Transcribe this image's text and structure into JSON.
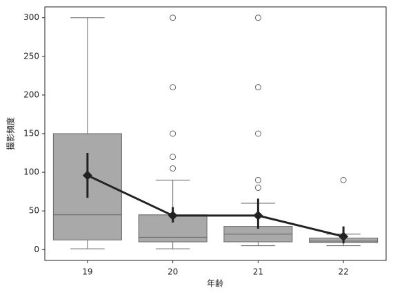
{
  "chart_data": {
    "type": "boxplot",
    "xlabel": "年齢",
    "ylabel": "撮影頻度",
    "categories": [
      "19",
      "20",
      "21",
      "22"
    ],
    "boxes": [
      {
        "whislo": 1,
        "q1": 12.5,
        "med": 45,
        "q3": 150,
        "whishi": 300,
        "fliers": []
      },
      {
        "whislo": 1,
        "q1": 10,
        "med": 16,
        "q3": 45,
        "whishi": 90,
        "fliers": [
          105,
          120,
          150,
          210,
          300
        ]
      },
      {
        "whislo": 5,
        "q1": 10,
        "med": 20,
        "q3": 30,
        "whishi": 60,
        "fliers": [
          80,
          90,
          150,
          210,
          300
        ]
      },
      {
        "whislo": 5,
        "q1": 9,
        "med": 11,
        "q3": 15,
        "whishi": 20,
        "fliers": [
          90
        ]
      }
    ],
    "box_color": "#a9a9a9",
    "edge_color": "#666666",
    "mean": {
      "values": [
        96,
        44,
        44,
        17
      ],
      "ci_low": [
        67,
        35,
        27,
        8
      ],
      "ci_high": [
        125,
        55,
        66,
        30
      ],
      "color": "#222222"
    },
    "ylim": [
      -14,
      314
    ],
    "yticks": [
      0,
      50,
      100,
      150,
      200,
      250,
      300
    ]
  }
}
